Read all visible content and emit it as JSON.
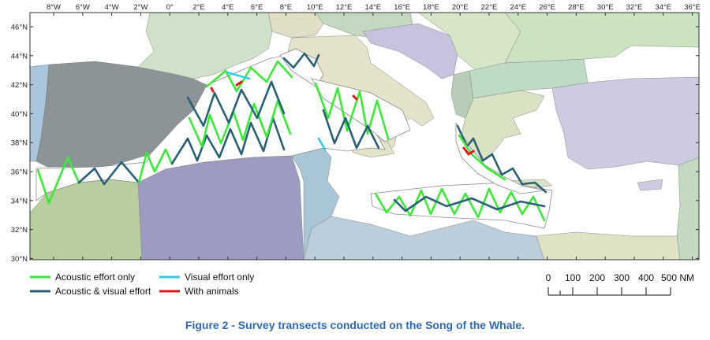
{
  "map": {
    "lon_ticks": [
      "8°W",
      "6°W",
      "4°W",
      "2°W",
      "0°",
      "2°E",
      "4°E",
      "6°E",
      "8°E",
      "10°E",
      "12°E",
      "14°E",
      "16°E",
      "18°E",
      "20°E",
      "22°E",
      "24°E",
      "26°E",
      "28°E",
      "30°E",
      "32°E",
      "34°E",
      "36°E"
    ],
    "lat_ticks": [
      "46°N",
      "44°N",
      "42°N",
      "40°N",
      "38°N",
      "36°N",
      "34°N",
      "32°N",
      "30°N"
    ],
    "colors": {
      "sea": "#ffffff",
      "acoustic": "#3ee83a",
      "both": "#2a6076",
      "visual": "#35c8ee",
      "animals": "#e01818"
    }
  },
  "legend": {
    "items": [
      {
        "label": "Acoustic effort only",
        "color": "#3ee83a"
      },
      {
        "label": "Visual effort only",
        "color": "#35c8ee"
      },
      {
        "label": "Acoustic & visual effort",
        "color": "#2a6076"
      },
      {
        "label": "With animals",
        "color": "#e01818"
      }
    ]
  },
  "scale_bar": {
    "labels": [
      "0",
      "100",
      "200",
      "300",
      "400",
      "500 NM"
    ]
  },
  "caption": "Figure 2 - Survey transects conducted on the Song of the Whale."
}
